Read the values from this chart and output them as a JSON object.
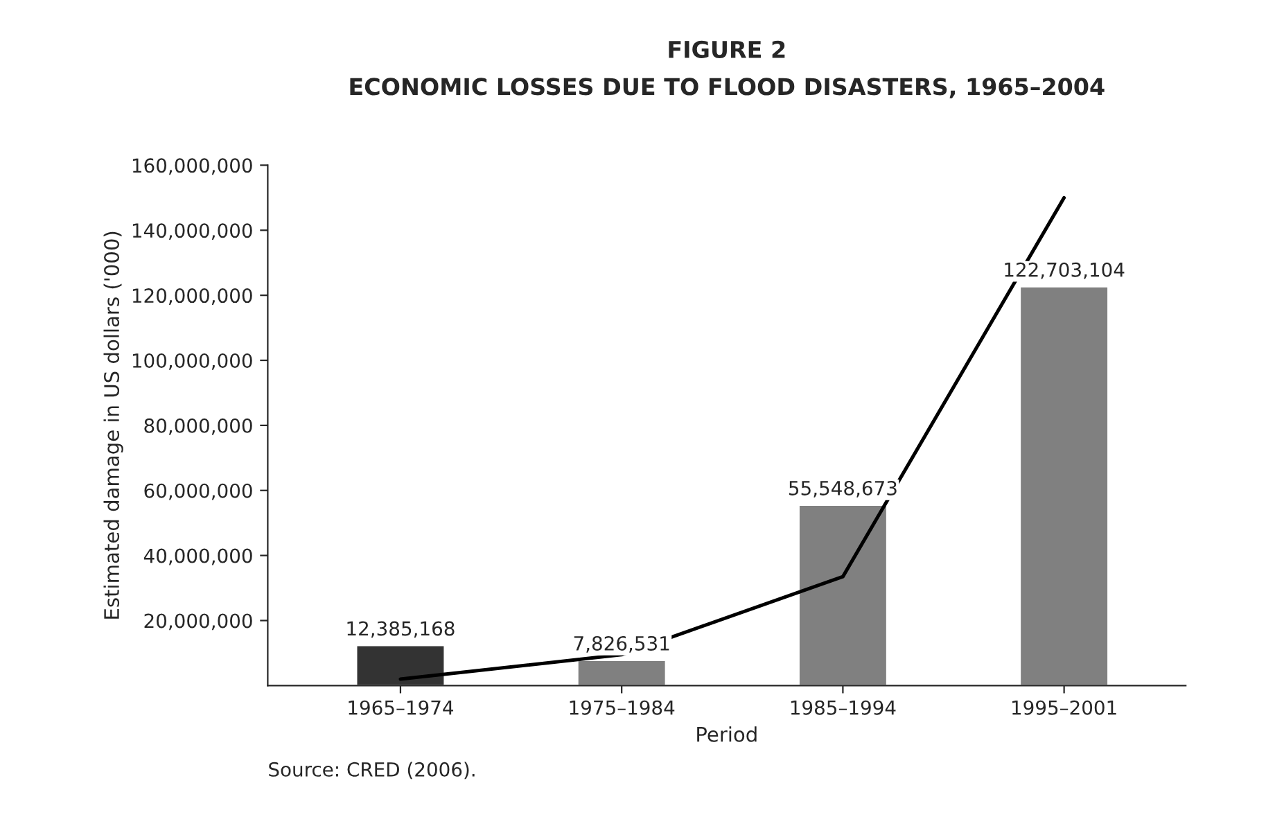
{
  "chart_data": {
    "type": "bar",
    "title": "FIGURE 2",
    "subtitle": "ECONOMIC LOSSES DUE TO FLOOD DISASTERS, 1965–2004",
    "xlabel": "Period",
    "ylabel": "Estimated damage in US dollars ('000)",
    "categories": [
      "1965–1974",
      "1975–1984",
      "1985–1994",
      "1995–2001"
    ],
    "series": [
      {
        "values": [
          12385168,
          7826531,
          55548673,
          122703104
        ],
        "value_labels": [
          "12,385,168",
          "7,826,531",
          "55,548,673",
          "122,703,104"
        ],
        "colors": [
          "#333333",
          "#808080",
          "#808080",
          "#808080"
        ]
      },
      {
        "type": "line",
        "x": [
          "1965–1974",
          "1975–1984",
          "1985–1994",
          "1995–2001"
        ],
        "values": [
          2000000,
          9500000,
          33500000,
          150000000
        ],
        "color": "#000000"
      }
    ],
    "ylim": [
      0,
      160000000
    ],
    "yticks": [
      {
        "value": 20000000,
        "label": "20,000,000"
      },
      {
        "value": 40000000,
        "label": "40,000,000"
      },
      {
        "value": 60000000,
        "label": "60,000,000"
      },
      {
        "value": 80000000,
        "label": "80,000,000"
      },
      {
        "value": 100000000,
        "label": "100,000,000"
      },
      {
        "value": 120000000,
        "label": "120,000,000"
      },
      {
        "value": 140000000,
        "label": "140,000,000"
      },
      {
        "value": 160000000,
        "label": "160,000,000"
      }
    ],
    "grid": false,
    "annotations": [
      "Source: CRED (2006)."
    ]
  }
}
